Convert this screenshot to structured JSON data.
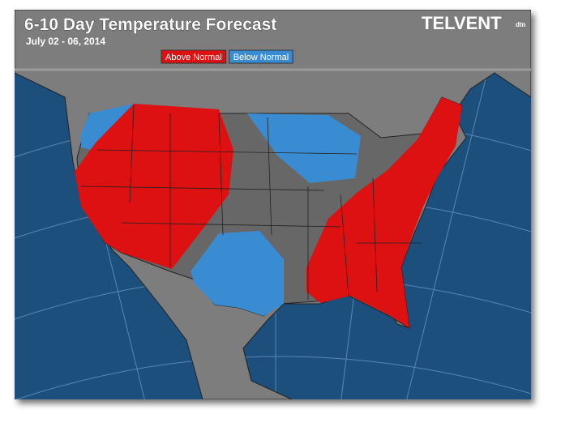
{
  "header": {
    "title": "6-10 Day Temperature Forecast",
    "subtitle": "July 02 - 06, 2014",
    "logo": "TELVENT",
    "logo_badge": "dtn"
  },
  "legend": [
    {
      "label": "Above Normal",
      "color": "#dd1111"
    },
    {
      "label": "Below Normal",
      "color": "#3a8cd2"
    }
  ]
}
